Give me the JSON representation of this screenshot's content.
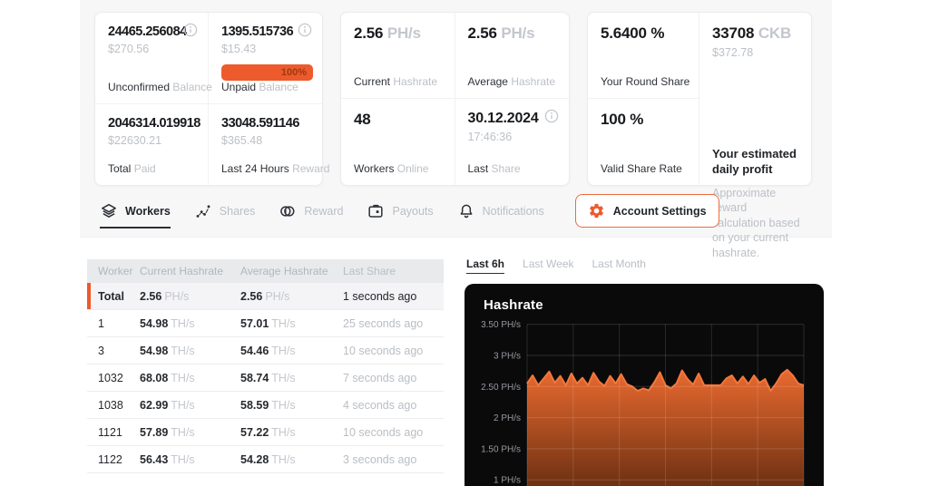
{
  "accent": "#ED5A2C",
  "icons": {
    "nav": [
      "layers-icon",
      "scatter-icon",
      "coins-icon",
      "wallet-icon",
      "bell-icon",
      "gear-icon"
    ],
    "card_info": "info-icon"
  },
  "cards": {
    "unconfirmed": {
      "value": "24465.256084",
      "usd": "$270.56",
      "label1": "Unconfirmed",
      "label2": "Balance"
    },
    "unpaid": {
      "value": "1395.515736",
      "usd": "$15.43",
      "progress": "100%",
      "label1": "Unpaid",
      "label2": "Balance"
    },
    "total_paid": {
      "value": "2046314.019918",
      "usd": "$22630.21",
      "label1": "Total",
      "label2": "Paid"
    },
    "last24h_reward": {
      "value": "33048.591146",
      "usd": "$365.48",
      "label1": "Last 24 Hours",
      "label2": "Reward"
    },
    "current_hashrate": {
      "value": "2.56",
      "unit": "PH/s",
      "label1": "Current",
      "label2": "Hashrate"
    },
    "average_hashrate": {
      "value": "2.56",
      "unit": "PH/s",
      "label1": "Average",
      "label2": "Hashrate"
    },
    "workers_online": {
      "value": "48",
      "label1": "Workers",
      "label2": "Online"
    },
    "last_share": {
      "date": "30.12.2024",
      "time": "17:46:36",
      "label1": "Last",
      "label2": "Share"
    },
    "round_share": {
      "value": "5.6400",
      "unit": "%",
      "label": "Your Round Share"
    },
    "valid_share_rate": {
      "value": "100",
      "unit": "%",
      "label": "Valid Share Rate"
    },
    "daily_profit": {
      "value": "33708",
      "unit": "CKB",
      "usd": "$372.78",
      "title": "Your estimated daily profit",
      "desc": "Approximate reward calculation based on your current hashrate."
    }
  },
  "nav_tabs": [
    {
      "label": "Workers",
      "active": true
    },
    {
      "label": "Shares"
    },
    {
      "label": "Reward"
    },
    {
      "label": "Payouts"
    },
    {
      "label": "Notifications"
    },
    {
      "label": "Account Settings",
      "button": true
    }
  ],
  "workers_table": {
    "columns": [
      "Worker",
      "Current Hashrate",
      "Average Hashrate",
      "Last Share"
    ],
    "rows": [
      {
        "worker": "Total",
        "current": "2.56",
        "current_unit": "PH/s",
        "average": "2.56",
        "average_unit": "PH/s",
        "last_share": "1 seconds ago",
        "total": true
      },
      {
        "worker": "1",
        "current": "54.98",
        "current_unit": "TH/s",
        "average": "57.01",
        "average_unit": "TH/s",
        "last_share": "25 seconds ago"
      },
      {
        "worker": "3",
        "current": "54.98",
        "current_unit": "TH/s",
        "average": "54.46",
        "average_unit": "TH/s",
        "last_share": "10 seconds ago"
      },
      {
        "worker": "1032",
        "current": "68.08",
        "current_unit": "TH/s",
        "average": "58.74",
        "average_unit": "TH/s",
        "last_share": "7 seconds ago"
      },
      {
        "worker": "1038",
        "current": "62.99",
        "current_unit": "TH/s",
        "average": "58.59",
        "average_unit": "TH/s",
        "last_share": "4 seconds ago"
      },
      {
        "worker": "1121",
        "current": "57.89",
        "current_unit": "TH/s",
        "average": "57.22",
        "average_unit": "TH/s",
        "last_share": "10 seconds ago"
      },
      {
        "worker": "1122",
        "current": "56.43",
        "current_unit": "TH/s",
        "average": "54.28",
        "average_unit": "TH/s",
        "last_share": "3 seconds ago"
      }
    ]
  },
  "range_tabs": [
    {
      "label": "Last 6h",
      "active": true
    },
    {
      "label": "Last Week"
    },
    {
      "label": "Last Month"
    }
  ],
  "chart_data": {
    "type": "area",
    "title": "Hashrate",
    "series_name": "Hashrate",
    "unit": "PH/s",
    "time_range": "Last 6h",
    "ylim": [
      0.85,
      3.7
    ],
    "grid": true,
    "legend": false,
    "background": "#0a0a0b",
    "line_color": "#F3763B",
    "area_gradient": [
      "#EE6C31",
      "#4A2009"
    ],
    "yticks": [
      {
        "label": "3.50 PH/s",
        "value": 3.5
      },
      {
        "label": "3 PH/s",
        "value": 3.0
      },
      {
        "label": "2.50 PH/s",
        "value": 2.5
      },
      {
        "label": "2 PH/s",
        "value": 2.0
      },
      {
        "label": "1.50 PH/s",
        "value": 1.5
      },
      {
        "label": "1 PH/s",
        "value": 1.0
      }
    ],
    "values": [
      2.55,
      2.68,
      2.52,
      2.63,
      2.74,
      2.56,
      2.67,
      2.52,
      2.71,
      2.55,
      2.64,
      2.52,
      2.72,
      2.58,
      2.51,
      2.67,
      2.55,
      2.7,
      2.54,
      2.5,
      2.43,
      2.47,
      2.44,
      2.57,
      2.73,
      2.52,
      2.47,
      2.55,
      2.76,
      2.62,
      2.53,
      2.71,
      2.52,
      2.52,
      2.52,
      2.52,
      2.63,
      2.68,
      2.55,
      2.66,
      2.54,
      2.68,
      2.56,
      2.62,
      2.43,
      2.55,
      2.7,
      2.77,
      2.68,
      2.55,
      2.52
    ]
  }
}
